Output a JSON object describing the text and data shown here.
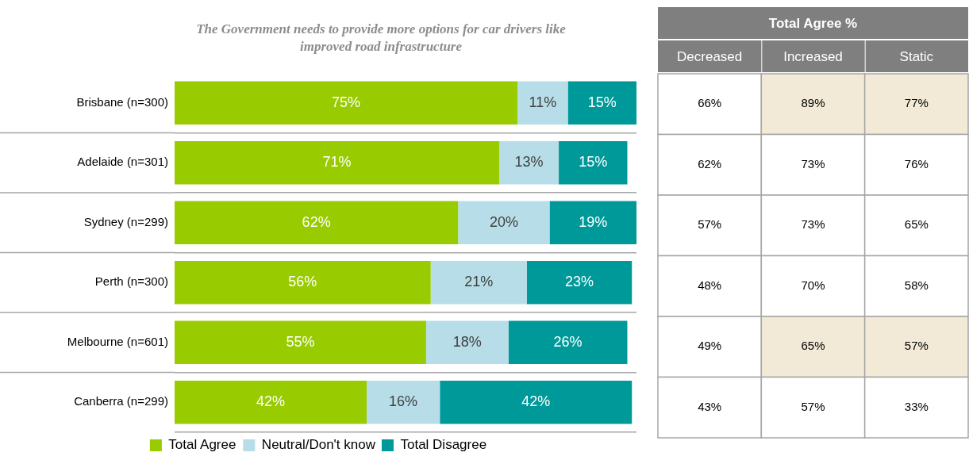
{
  "chart_data": [
    {
      "type": "bar",
      "orientation": "horizontal",
      "stacked": true,
      "title": "The Government needs to provide more options for car drivers like improved road infrastructure",
      "categories": [
        "Brisbane (n=300)",
        "Adelaide (n=301)",
        "Sydney (n=299)",
        "Perth (n=300)",
        "Melbourne (n=601)",
        "Canberra (n=299)"
      ],
      "series": [
        {
          "name": "Total Agree",
          "color": "#99cc00",
          "values": [
            75,
            71,
            62,
            56,
            55,
            42
          ],
          "value_labels": [
            "75%",
            "71%",
            "62%",
            "56%",
            "55%",
            "42%"
          ]
        },
        {
          "name": "Neutral/Don't know",
          "color": "#b7dee8",
          "values": [
            11,
            13,
            20,
            21,
            18,
            16
          ],
          "value_labels": [
            "11%",
            "13%",
            "20%",
            "21%",
            "18%",
            "16%"
          ]
        },
        {
          "name": "Total Disagree",
          "color": "#009999",
          "values": [
            15,
            15,
            19,
            23,
            26,
            42
          ],
          "value_labels": [
            "15%",
            "15%",
            "19%",
            "23%",
            "26%",
            "42%"
          ]
        }
      ],
      "legend": "bottom",
      "grid": "y",
      "tick_labels": "y"
    },
    {
      "type": "other",
      "title": "Total Agree %",
      "categories": [
        "Decreased",
        "Increased",
        "Static"
      ],
      "cell_labels": [
        [
          "66%",
          "89%",
          "77%"
        ],
        [
          "62%",
          "73%",
          "76%"
        ],
        [
          "57%",
          "73%",
          "65%"
        ],
        [
          "48%",
          "70%",
          "58%"
        ],
        [
          "49%",
          "65%",
          "57%"
        ],
        [
          "43%",
          "57%",
          "33%"
        ]
      ],
      "colors": [
        [
          "#ffffff",
          "#f2ead6",
          "#f2ead6"
        ],
        [
          "#ffffff",
          "#ffffff",
          "#ffffff"
        ],
        [
          "#ffffff",
          "#ffffff",
          "#ffffff"
        ],
        [
          "#ffffff",
          "#ffffff",
          "#ffffff"
        ],
        [
          "#ffffff",
          "#f2ead6",
          "#f2ead6"
        ],
        [
          "#ffffff",
          "#ffffff",
          "#ffffff"
        ]
      ]
    }
  ]
}
